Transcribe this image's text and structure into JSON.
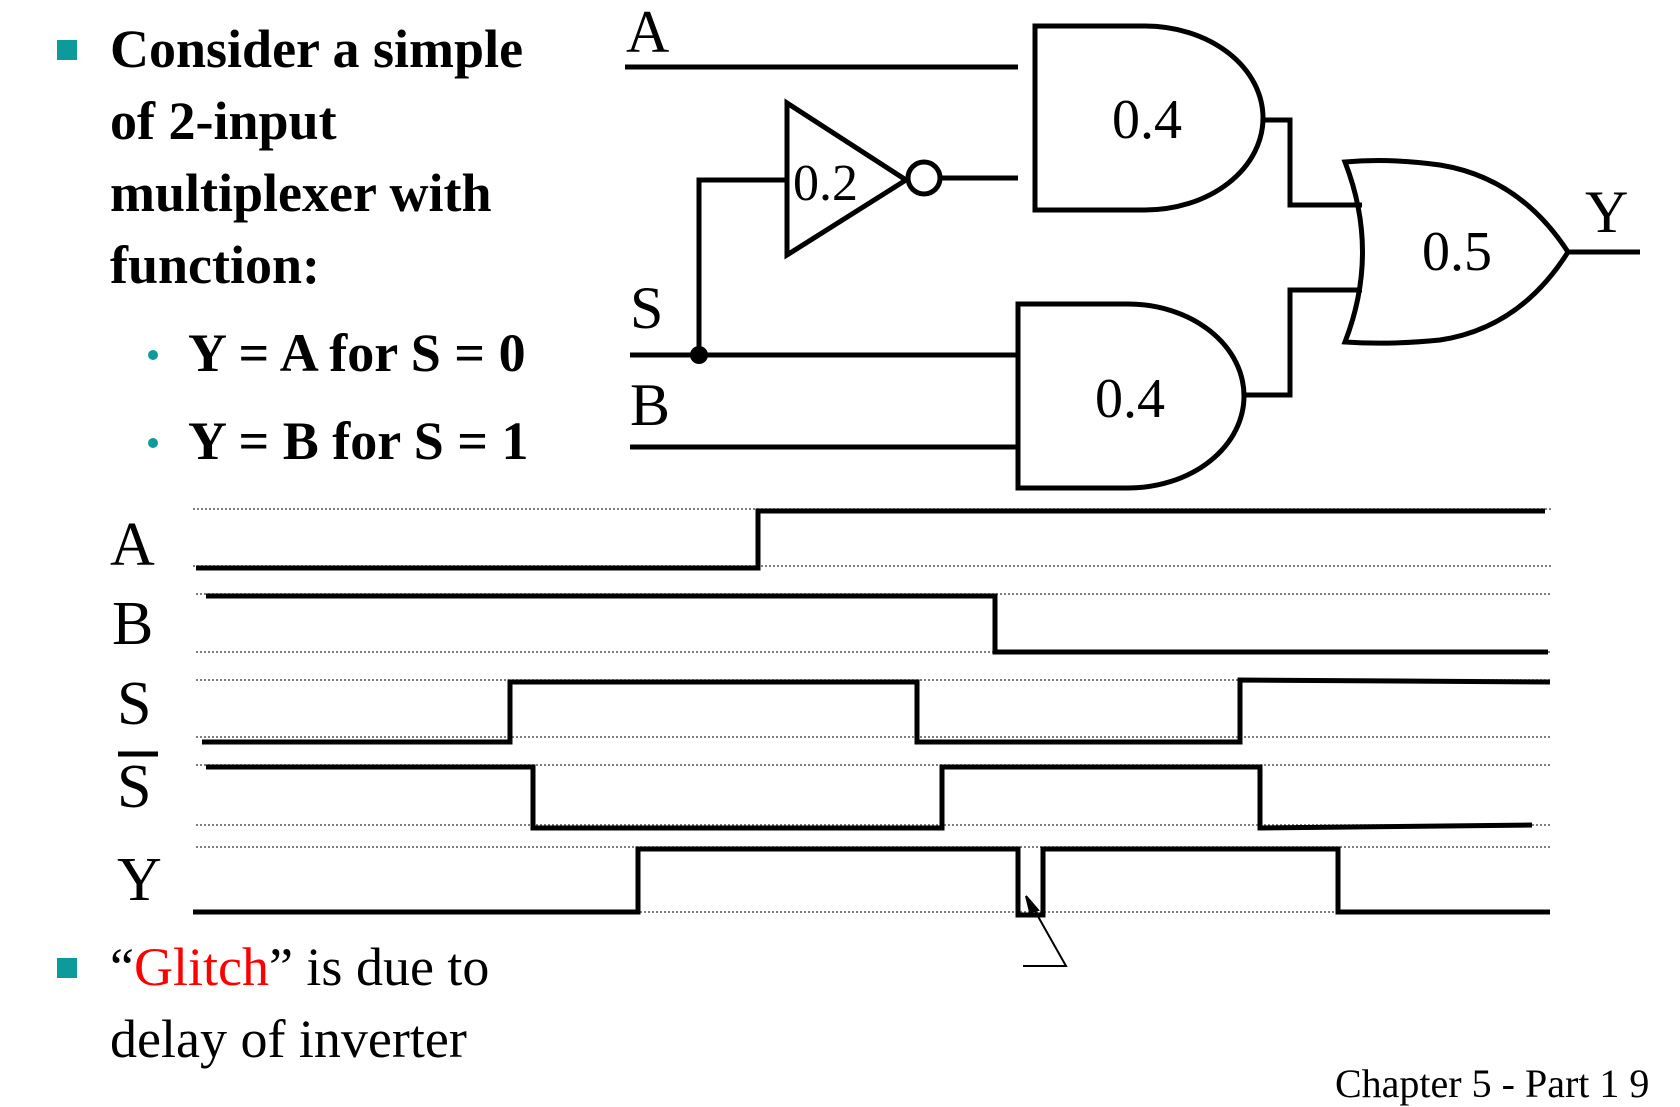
{
  "bullets": {
    "intro_lines": [
      "Consider a simple",
      "of 2-input",
      "multiplexer with",
      "function:"
    ],
    "sub_1": "Y = A for  S = 0",
    "sub_2": "Y = B for  S = 1",
    "glitch_quote_open": "“",
    "glitch_word": "Glitch",
    "glitch_rest": "” is due to",
    "glitch_line2": "delay of inverter",
    "footer_partial": "Chapter 5 - Part 1    9"
  },
  "circuit": {
    "input_a": "A",
    "input_s": "S",
    "input_b": "B",
    "output_y": "Y",
    "inverter_delay": "0.2",
    "and_top_delay": "0.4",
    "and_bottom_delay": "0.4",
    "or_delay": "0.5"
  },
  "timing": {
    "labels": [
      "A",
      "B",
      "S",
      "S",
      "Y"
    ],
    "sbar_label": "S"
  },
  "colors": {
    "bullet": "#0d9a9a",
    "glitch": "#ff0000",
    "ink": "#000000"
  }
}
